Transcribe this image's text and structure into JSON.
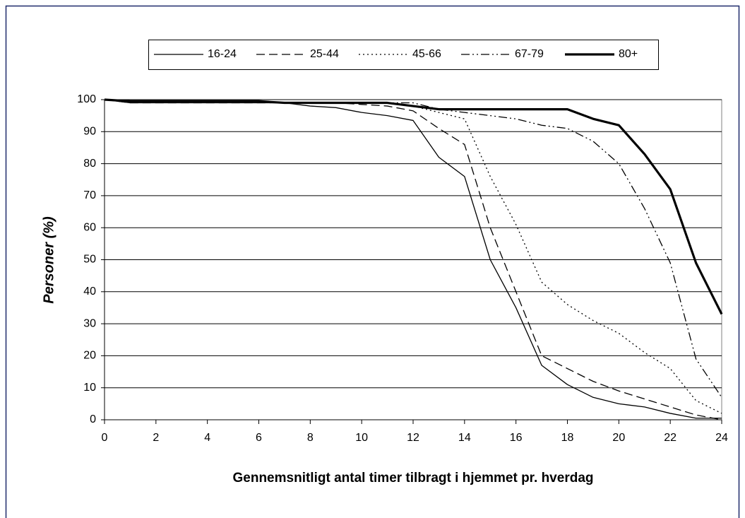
{
  "chart_data": {
    "type": "line",
    "x_label": "Gennemsnitligt antal timer tilbragt i hjemmet pr. hverdag",
    "y_label": "Personer (%)",
    "x": [
      0,
      1,
      2,
      3,
      4,
      5,
      6,
      7,
      8,
      9,
      10,
      11,
      12,
      13,
      14,
      15,
      16,
      17,
      18,
      19,
      20,
      21,
      22,
      23,
      24
    ],
    "series": [
      {
        "name": "16-24",
        "color": "#000000",
        "dash": "none",
        "width": 1.3,
        "values": [
          100,
          99,
          99,
          99,
          99,
          99,
          99,
          99,
          98,
          97.5,
          96,
          95,
          93.5,
          82,
          76,
          50,
          35,
          17,
          11,
          7,
          5,
          4,
          2,
          0.5,
          0.5
        ]
      },
      {
        "name": "25-44",
        "color": "#000000",
        "dash": "12 6",
        "width": 1.3,
        "values": [
          100,
          99,
          99,
          99,
          99,
          99,
          99,
          99,
          99,
          99,
          98.5,
          98,
          96.5,
          91,
          86,
          60,
          40,
          20,
          16,
          12,
          9,
          6.5,
          4,
          1.5,
          0
        ]
      },
      {
        "name": "45-66",
        "color": "#000000",
        "dash": "2 4",
        "width": 1.3,
        "values": [
          100,
          99.5,
          99.5,
          99.5,
          99.5,
          99.5,
          99.5,
          99,
          99,
          99,
          99,
          99,
          98,
          96,
          94,
          76,
          61,
          43,
          36,
          31,
          27,
          21,
          16,
          6,
          2
        ]
      },
      {
        "name": "67-79",
        "color": "#000000",
        "dash": "12 4 2 4 2 4",
        "width": 1.3,
        "values": [
          100,
          99.5,
          99.5,
          99.5,
          99.5,
          99.5,
          99.5,
          99,
          99,
          99,
          99,
          99,
          99,
          97,
          96,
          95,
          94,
          92,
          91,
          87,
          80,
          66,
          49,
          19,
          7
        ]
      },
      {
        "name": "80+",
        "color": "#000000",
        "dash": "none",
        "width": 3.2,
        "values": [
          100,
          99.5,
          99.5,
          99.5,
          99.5,
          99.5,
          99.5,
          99,
          99,
          99,
          99,
          99,
          98,
          97,
          97,
          97,
          97,
          97,
          97,
          94,
          92,
          83,
          72,
          49,
          33
        ]
      }
    ],
    "xlim": [
      0,
      24
    ],
    "xticks": [
      0,
      2,
      4,
      6,
      8,
      10,
      12,
      14,
      16,
      18,
      20,
      22,
      24
    ],
    "ylim": [
      0,
      100
    ],
    "yticks": [
      0,
      10,
      20,
      30,
      40,
      50,
      60,
      70,
      80,
      90,
      100
    ],
    "grid": true
  }
}
